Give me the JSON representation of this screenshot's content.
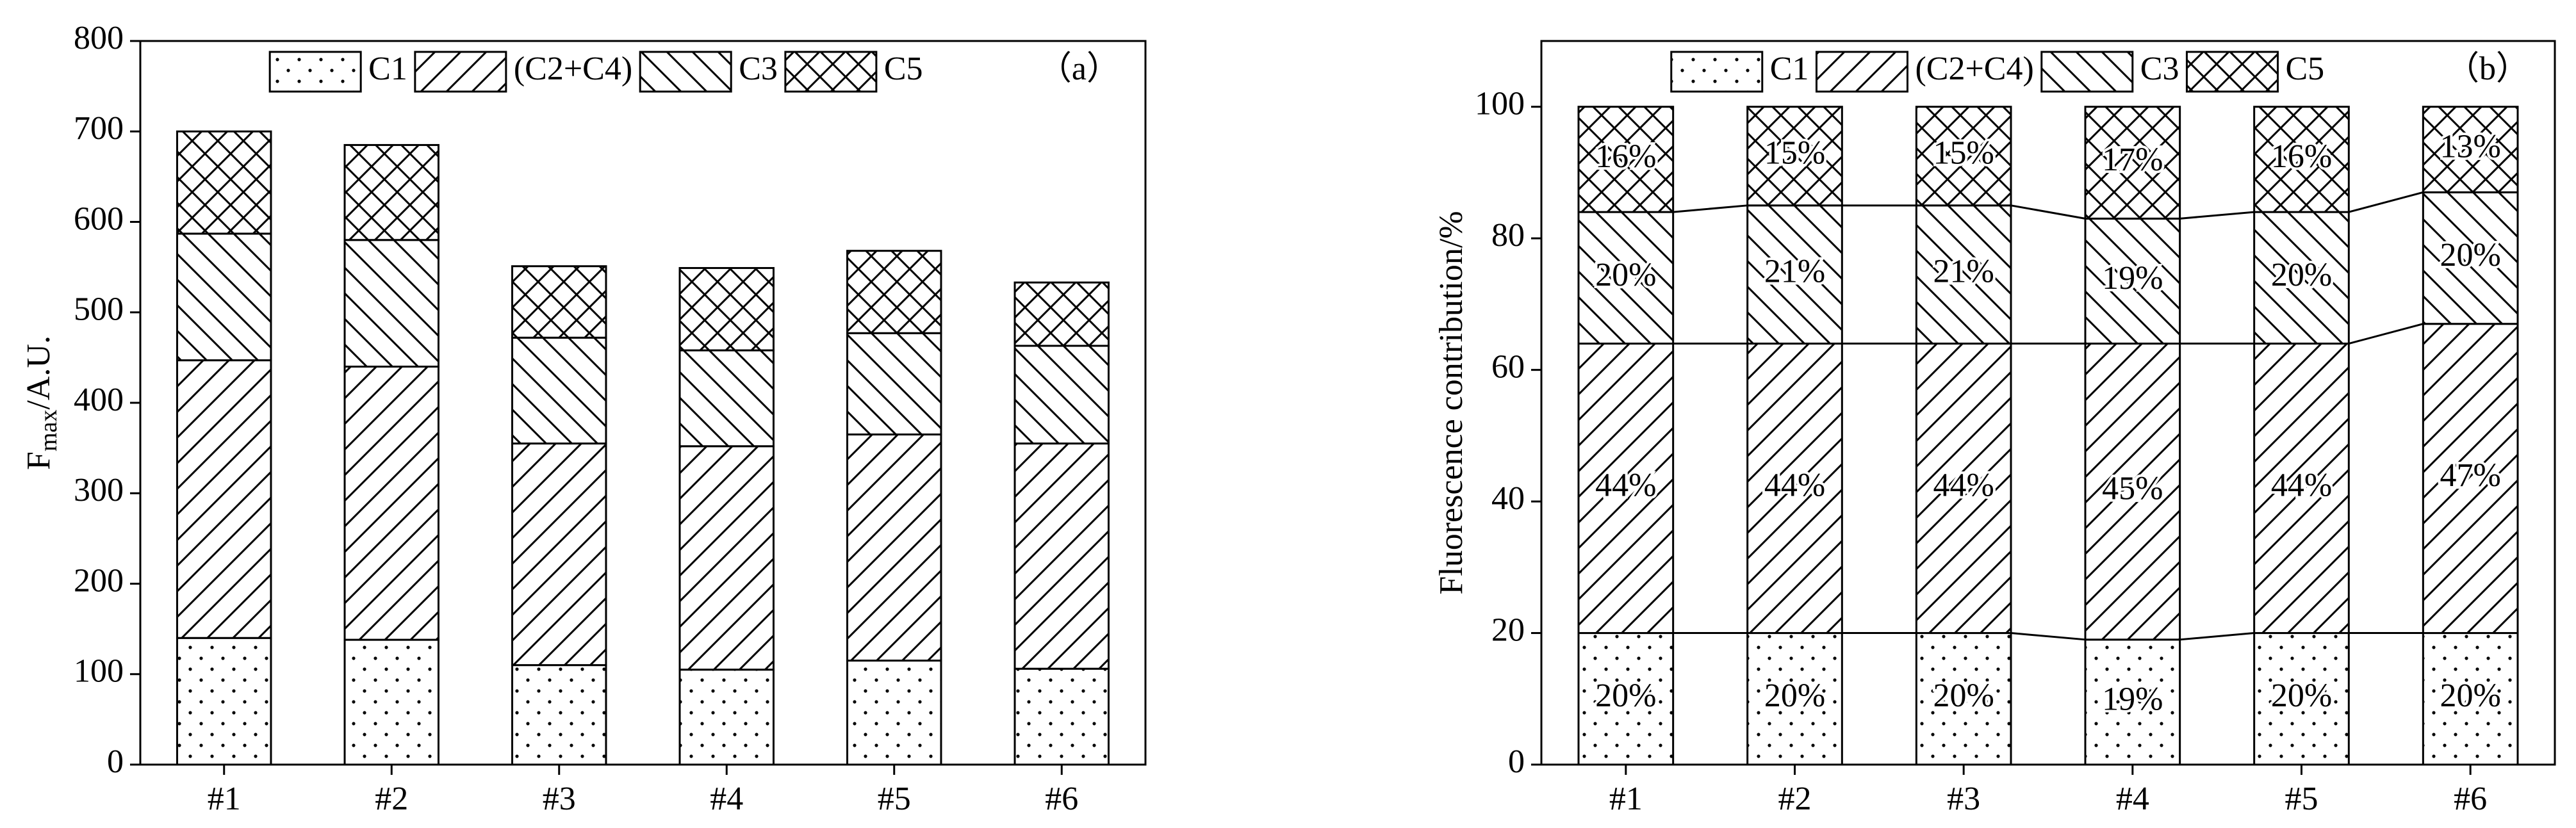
{
  "chart_data": [
    {
      "type": "bar",
      "stacked": true,
      "panel_label": "（a）",
      "y_label": {
        "main": "F",
        "sub": "max",
        "rest": "/A.U."
      },
      "categories": [
        "#1",
        "#2",
        "#3",
        "#4",
        "#5",
        "#6"
      ],
      "ylim": [
        0,
        800
      ],
      "yticks": [
        0,
        100,
        200,
        300,
        400,
        500,
        600,
        700,
        800
      ],
      "connectors": false,
      "series": [
        {
          "name": "C1",
          "pattern": "dots",
          "color": "#000000",
          "values": [
            140,
            138,
            110,
            105,
            115,
            106
          ]
        },
        {
          "name": "(C2+C4)",
          "pattern": "diag-up",
          "color": "#000000",
          "values": [
            307,
            302,
            245,
            247,
            250,
            249
          ]
        },
        {
          "name": "C3",
          "pattern": "diag-down",
          "color": "#000000",
          "values": [
            140,
            140,
            117,
            106,
            112,
            108
          ]
        },
        {
          "name": "C5",
          "pattern": "cross",
          "color": "#000000",
          "values": [
            113,
            105,
            79,
            91,
            91,
            70
          ]
        }
      ]
    },
    {
      "type": "bar",
      "stacked": true,
      "panel_label": "（b）",
      "y_label": "Fluorescence contribution/%",
      "categories": [
        "#1",
        "#2",
        "#3",
        "#4",
        "#5",
        "#6"
      ],
      "ylim": [
        0,
        110
      ],
      "yticks": [
        0,
        20,
        40,
        60,
        80,
        100
      ],
      "connectors": true,
      "series": [
        {
          "name": "C1",
          "pattern": "dots",
          "color": "#000000",
          "values": [
            20,
            20,
            20,
            19,
            20,
            20
          ],
          "value_labels": [
            "20%",
            "20%",
            "20%",
            "19%",
            "20%",
            "20%"
          ]
        },
        {
          "name": "(C2+C4)",
          "pattern": "diag-up",
          "color": "#000000",
          "values": [
            44,
            44,
            44,
            45,
            44,
            47
          ],
          "value_labels": [
            "44%",
            "44%",
            "44%",
            "45%",
            "44%",
            "47%"
          ]
        },
        {
          "name": "C3",
          "pattern": "diag-down",
          "color": "#000000",
          "values": [
            20,
            21,
            21,
            19,
            20,
            20
          ],
          "value_labels": [
            "20%",
            "21%",
            "21%",
            "19%",
            "20%",
            "20%"
          ]
        },
        {
          "name": "C5",
          "pattern": "cross",
          "color": "#000000",
          "values": [
            16,
            15,
            15,
            17,
            16,
            13
          ],
          "value_labels": [
            "16%",
            "15%",
            "15%",
            "17%",
            "16%",
            "13%"
          ]
        }
      ]
    }
  ]
}
